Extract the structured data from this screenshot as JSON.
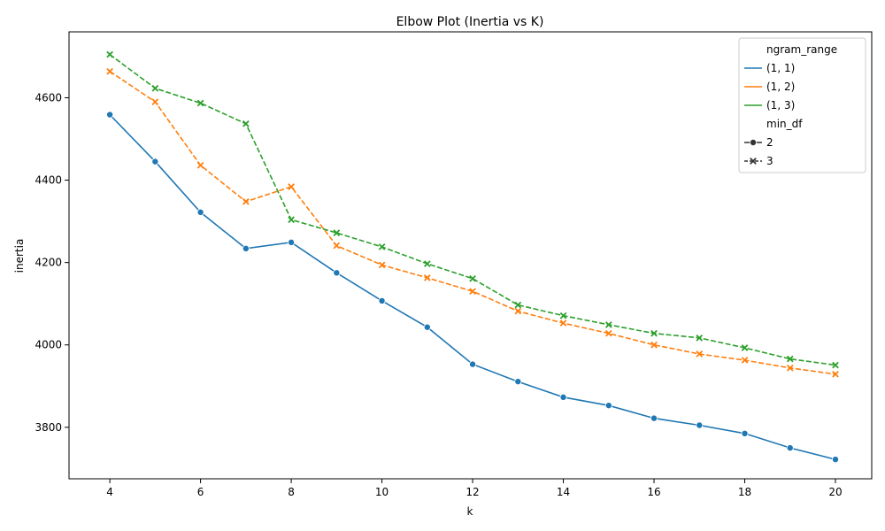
{
  "chart_data": {
    "type": "line",
    "title": "Elbow Plot (Inertia vs K)",
    "xlabel": "k",
    "ylabel": "inertia",
    "xlim": [
      3.1,
      20.8
    ],
    "ylim": [
      3675,
      4760
    ],
    "xticks": [
      4,
      6,
      8,
      10,
      12,
      14,
      16,
      18,
      20
    ],
    "yticks": [
      3800,
      4000,
      4200,
      4400,
      4600
    ],
    "grid": false,
    "legend_position": "top-right",
    "x": [
      4,
      5,
      6,
      7,
      8,
      9,
      10,
      11,
      12,
      13,
      14,
      15,
      16,
      17,
      18,
      19,
      20
    ],
    "series": [
      {
        "name": "(1, 1)",
        "ngram_range": "(1, 1)",
        "min_df": "2",
        "color": "#1f77b4",
        "dashed": false,
        "marker": "circle",
        "values": [
          4559,
          4445,
          4322,
          4234,
          4249,
          4175,
          4107,
          4043,
          3953,
          3911,
          3873,
          3853,
          3822,
          3805,
          3785,
          3750,
          3722
        ]
      },
      {
        "name": "(1, 2)",
        "ngram_range": "(1, 2)",
        "min_df": "3",
        "color": "#ff7f0e",
        "dashed": true,
        "marker": "x",
        "values": [
          4664,
          4590,
          4436,
          4348,
          4384,
          4241,
          4194,
          4163,
          4130,
          4082,
          4053,
          4028,
          4000,
          3978,
          3963,
          3944,
          3929
        ]
      },
      {
        "name": "(1, 3)",
        "ngram_range": "(1, 3)",
        "min_df": "3",
        "color": "#2ca02c",
        "dashed": true,
        "marker": "x",
        "values": [
          4705,
          4623,
          4587,
          4537,
          4304,
          4272,
          4238,
          4197,
          4161,
          4097,
          4071,
          4049,
          4028,
          4017,
          3993,
          3966,
          3951
        ]
      }
    ],
    "legend": {
      "hue_title": "ngram_range",
      "hue_items": [
        {
          "label": "(1, 1)",
          "color": "#1f77b4"
        },
        {
          "label": "(1, 2)",
          "color": "#ff7f0e"
        },
        {
          "label": "(1, 3)",
          "color": "#2ca02c"
        }
      ],
      "style_title": "min_df",
      "style_items": [
        {
          "label": "2",
          "dashed": false,
          "marker": "circle"
        },
        {
          "label": "3",
          "dashed": true,
          "marker": "x"
        }
      ]
    }
  }
}
